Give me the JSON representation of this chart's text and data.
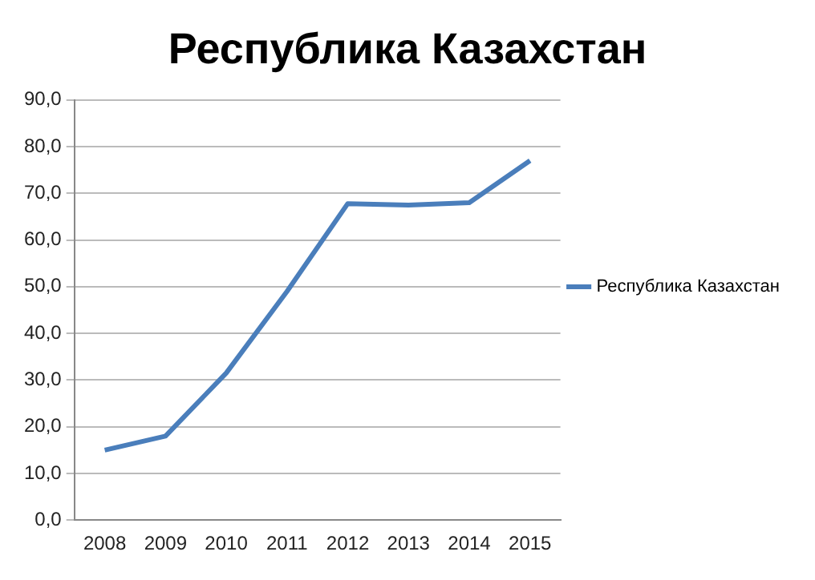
{
  "chart_data": {
    "type": "line",
    "title": "Республика Казахстан",
    "categories": [
      "2008",
      "2009",
      "2010",
      "2011",
      "2012",
      "2013",
      "2014",
      "2015"
    ],
    "series": [
      {
        "name": "Республика Казахстан",
        "color": "#4a7ebb",
        "values": [
          15,
          18,
          31.5,
          49,
          67.8,
          67.5,
          68,
          77
        ]
      }
    ],
    "ylim": [
      0,
      90
    ],
    "yticks": [
      {
        "value": 0,
        "label": "0,0"
      },
      {
        "value": 10,
        "label": "10,0"
      },
      {
        "value": 20,
        "label": "20,0"
      },
      {
        "value": 30,
        "label": "30,0"
      },
      {
        "value": 40,
        "label": "40,0"
      },
      {
        "value": 50,
        "label": "50,0"
      },
      {
        "value": 60,
        "label": "60,0"
      },
      {
        "value": 70,
        "label": "70,0"
      },
      {
        "value": 80,
        "label": "80,0"
      },
      {
        "value": 90,
        "label": "90,0"
      }
    ],
    "grid": "y",
    "legend": "right",
    "marker": "none",
    "line_style": "solid"
  }
}
